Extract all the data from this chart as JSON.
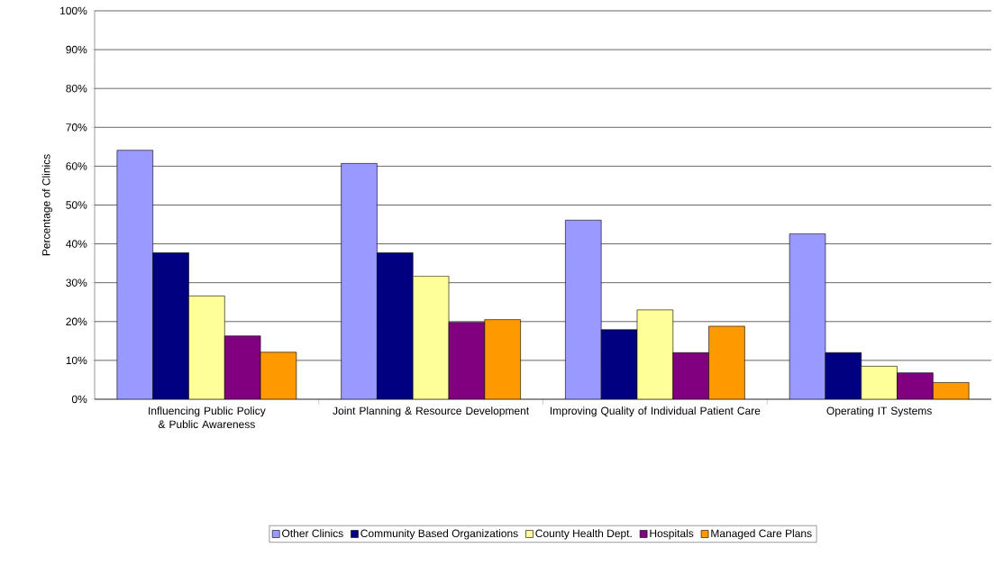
{
  "chart_data": {
    "type": "bar",
    "ylabel": "Percentage of Clinics",
    "categories": [
      "Influencing Public Policy & Public Awareness",
      "Joint Planning & Resource Development",
      "Improving Quality of Individual Patient Care",
      "Operating IT Systems"
    ],
    "series": [
      {
        "name": "Other Clinics",
        "color": "#9999ff",
        "values": [
          64.1,
          60.7,
          46.1,
          42.6
        ]
      },
      {
        "name": "Community Based Organizations",
        "color": "#000080",
        "values": [
          37.7,
          37.7,
          17.9,
          12.0
        ]
      },
      {
        "name": "County Health Dept.",
        "color": "#ffff99",
        "values": [
          26.6,
          31.7,
          23.0,
          8.5
        ]
      },
      {
        "name": "Hospitals",
        "color": "#800080",
        "values": [
          16.3,
          19.8,
          12.0,
          6.8
        ]
      },
      {
        "name": "Managed Care Plans",
        "color": "#ff9900",
        "values": [
          12.1,
          20.5,
          18.8,
          4.3
        ]
      }
    ],
    "ylim": [
      0,
      100
    ],
    "yticks": [
      {
        "value": 0,
        "label": "0%"
      },
      {
        "value": 10,
        "label": "10%"
      },
      {
        "value": 20,
        "label": "20%"
      },
      {
        "value": 30,
        "label": "30%"
      },
      {
        "value": 40,
        "label": "40%"
      },
      {
        "value": 50,
        "label": "50%"
      },
      {
        "value": 60,
        "label": "60%"
      },
      {
        "value": 70,
        "label": "70%"
      },
      {
        "value": 80,
        "label": "80%"
      },
      {
        "value": 90,
        "label": "90%"
      },
      {
        "value": 100,
        "label": "100%"
      }
    ],
    "grid": "y",
    "legend": "bottom"
  }
}
